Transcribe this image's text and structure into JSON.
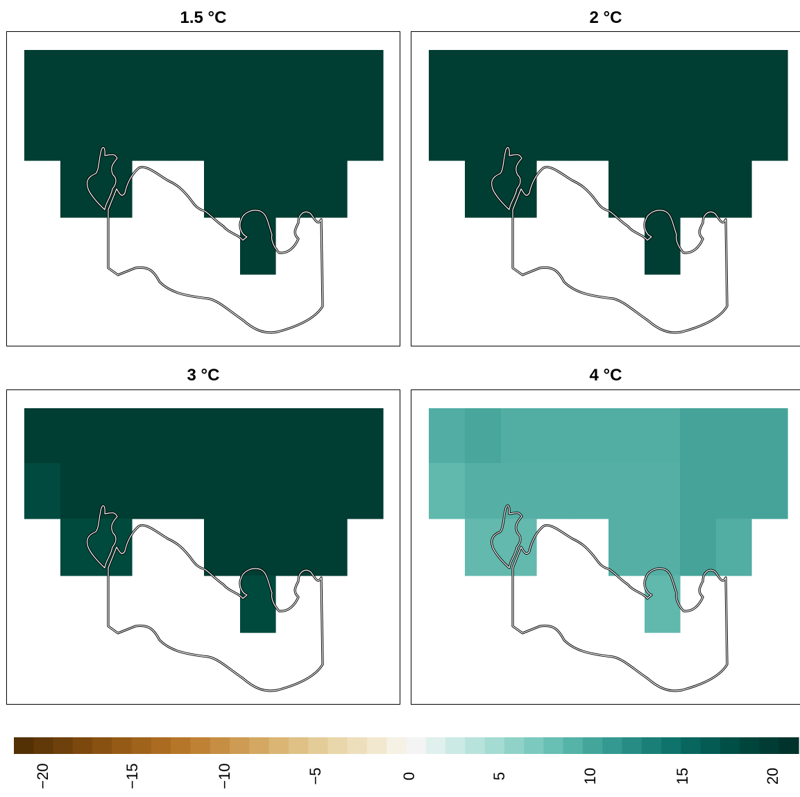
{
  "panels": [
    {
      "title": "1.5 °C"
    },
    {
      "title": "2 °C"
    },
    {
      "title": "3 °C"
    },
    {
      "title": "4 °C"
    }
  ],
  "legend": {
    "ticks": [
      "−20",
      "−15",
      "−10",
      "−5",
      "0",
      "5",
      "10",
      "15",
      "20"
    ]
  },
  "colors": {
    "deep_green": "#003d32",
    "green_3c_side": "#004a3e"
  },
  "chart_data": {
    "type": "heatmap",
    "colorbar_range": [
      -20,
      20
    ],
    "panels": [
      {
        "title": "1.5 °C",
        "cells": "all cells at maximum (~20)"
      },
      {
        "title": "2 °C",
        "cells": "all cells at maximum (~20)"
      },
      {
        "title": "3 °C",
        "cells": "mostly ~20, western/south cells ~17"
      },
      {
        "title": "4 °C",
        "cells": "~9 to ~12 across grid, eastern cells ~12"
      }
    ]
  }
}
